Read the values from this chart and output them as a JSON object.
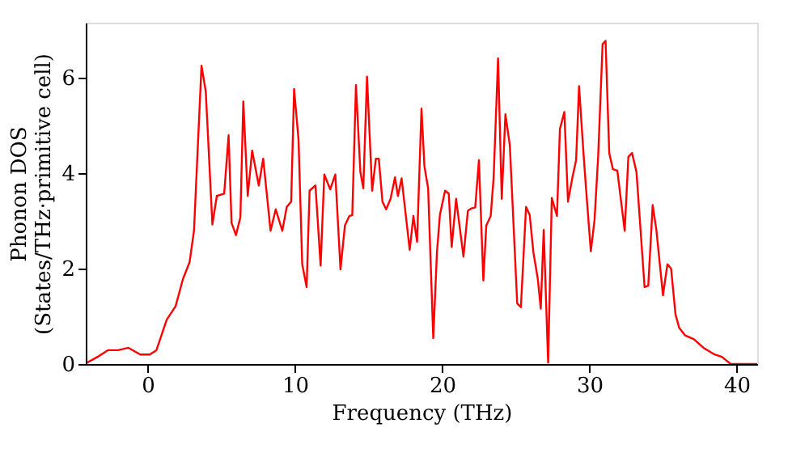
{
  "chart_data": {
    "type": "line",
    "xlabel": "Frequency (THz)",
    "ylabel": "Phonon DOS\n(States/THz·primitive cell)",
    "xlim": [
      -4.2,
      41.4
    ],
    "ylim": [
      0,
      7.15
    ],
    "xticks": [
      0,
      10,
      20,
      30,
      40
    ],
    "yticks": [
      0,
      2,
      4,
      6
    ],
    "grid": false,
    "line_style": "solid",
    "marker": "none",
    "series": [
      {
        "color": "#ff0000",
        "x": [
          -4.1,
          -3.4,
          -2.7,
          -2.0,
          -1.3,
          -0.5,
          0.15,
          0.6,
          1.3,
          1.9,
          2.4,
          2.85,
          3.15,
          3.66,
          3.95,
          4.4,
          4.7,
          5.2,
          5.5,
          5.7,
          6.0,
          6.3,
          6.5,
          6.8,
          7.1,
          7.55,
          7.85,
          8.35,
          8.7,
          9.15,
          9.45,
          9.75,
          9.95,
          10.25,
          10.5,
          10.8,
          11.0,
          11.4,
          11.75,
          12.0,
          12.4,
          12.75,
          13.1,
          13.4,
          13.7,
          13.9,
          14.15,
          14.45,
          14.65,
          14.9,
          15.25,
          15.5,
          15.7,
          15.95,
          16.2,
          16.5,
          16.8,
          17.0,
          17.25,
          17.8,
          18.05,
          18.3,
          18.6,
          18.8,
          19.05,
          19.4,
          19.65,
          19.85,
          20.2,
          20.45,
          20.65,
          20.95,
          21.45,
          21.75,
          22.0,
          22.25,
          22.5,
          22.8,
          23.0,
          23.3,
          23.5,
          23.8,
          24.05,
          24.3,
          24.6,
          25.1,
          25.35,
          25.7,
          25.95,
          26.2,
          26.5,
          26.7,
          26.9,
          27.2,
          27.45,
          27.8,
          28.0,
          28.3,
          28.55,
          28.85,
          29.1,
          29.3,
          29.6,
          29.8,
          30.1,
          30.35,
          30.6,
          30.9,
          31.1,
          31.35,
          31.6,
          31.9,
          32.4,
          32.65,
          32.9,
          33.2,
          33.75,
          34.0,
          34.3,
          34.55,
          35.0,
          35.3,
          35.55,
          35.85,
          36.1,
          36.5,
          37.1,
          37.75,
          38.5,
          39.0,
          39.6,
          41.4
        ],
        "values": [
          0.03,
          0.15,
          0.29,
          0.29,
          0.34,
          0.2,
          0.2,
          0.29,
          0.93,
          1.21,
          1.78,
          2.13,
          2.79,
          6.25,
          5.71,
          2.92,
          3.52,
          3.57,
          4.79,
          2.96,
          2.7,
          3.07,
          5.5,
          3.52,
          4.47,
          3.74,
          4.3,
          2.79,
          3.24,
          2.79,
          3.29,
          3.4,
          5.76,
          4.7,
          2.09,
          1.61,
          3.63,
          3.74,
          2.06,
          3.97,
          3.66,
          3.97,
          1.98,
          2.9,
          3.1,
          3.12,
          5.84,
          4.02,
          3.68,
          6.02,
          3.63,
          4.3,
          4.3,
          3.4,
          3.24,
          3.46,
          3.91,
          3.52,
          3.89,
          2.39,
          3.1,
          2.56,
          5.35,
          4.14,
          3.68,
          0.54,
          2.34,
          3.12,
          3.63,
          3.57,
          2.45,
          3.46,
          2.25,
          3.21,
          3.26,
          3.28,
          4.27,
          1.75,
          2.9,
          3.1,
          3.91,
          6.4,
          3.46,
          5.23,
          4.58,
          1.27,
          1.19,
          3.29,
          3.12,
          2.34,
          1.78,
          1.16,
          2.81,
          0.03,
          3.48,
          3.1,
          4.92,
          5.28,
          3.4,
          3.91,
          4.27,
          5.82,
          4.42,
          3.57,
          2.36,
          3.01,
          4.36,
          6.7,
          6.77,
          4.42,
          4.08,
          4.05,
          2.79,
          4.34,
          4.42,
          4.02,
          1.61,
          1.64,
          3.33,
          2.81,
          1.44,
          2.09,
          2.0,
          1.04,
          0.76,
          0.6,
          0.52,
          0.34,
          0.2,
          0.15,
          0,
          0
        ]
      }
    ]
  }
}
